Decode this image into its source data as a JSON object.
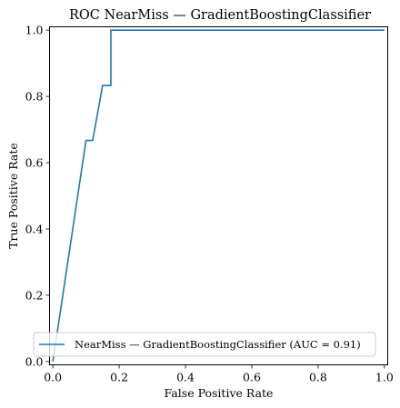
{
  "chart_data": {
    "type": "line",
    "title": "ROC NearMiss — GradientBoostingClassifier",
    "xlabel": "False Positive Rate",
    "ylabel": "True Positive Rate",
    "xlim": [
      -0.01,
      1.01
    ],
    "ylim": [
      -0.01,
      1.01
    ],
    "xticks": [
      0.0,
      0.2,
      0.4,
      0.6,
      0.8,
      1.0
    ],
    "yticks": [
      0.0,
      0.2,
      0.4,
      0.6,
      0.8,
      1.0
    ],
    "xtick_labels": [
      "0.0",
      "0.2",
      "0.4",
      "0.6",
      "0.8",
      "1.0"
    ],
    "ytick_labels": [
      "0.0",
      "0.2",
      "0.4",
      "0.6",
      "0.8",
      "1.0"
    ],
    "grid": false,
    "legend_position": "lower-right",
    "series": [
      {
        "name": "NearMiss — GradientBoostingClassifier (AUC = 0.91)",
        "color": "#1f77b4",
        "x": [
          0.0,
          0.0,
          0.1,
          0.12,
          0.15,
          0.175,
          0.175,
          1.0
        ],
        "y": [
          0.0,
          0.0,
          0.667,
          0.667,
          0.833,
          0.833,
          1.0,
          1.0
        ]
      }
    ]
  }
}
